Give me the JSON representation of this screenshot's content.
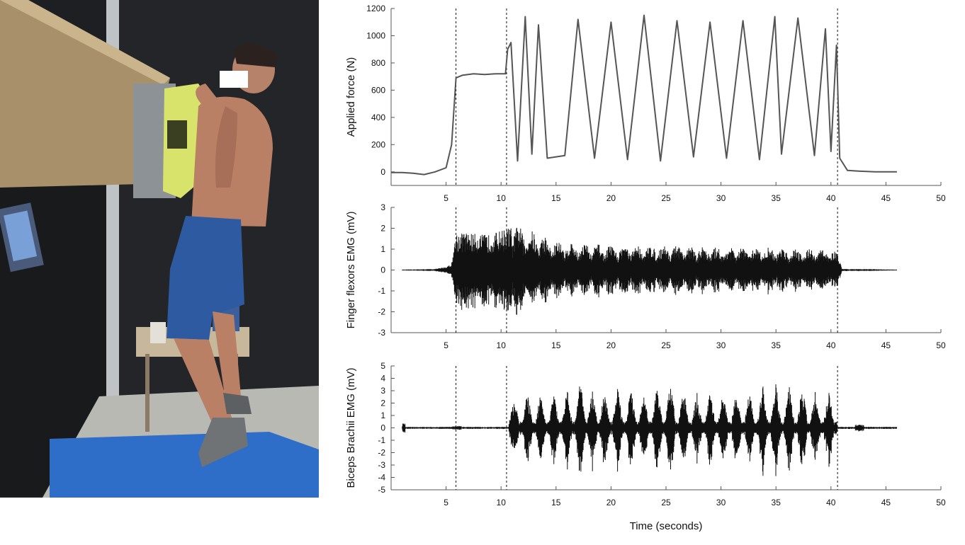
{
  "chart_data": [
    {
      "type": "line",
      "ylabel": "Applied force (N)",
      "xlim": [
        0,
        50
      ],
      "ylim": [
        -100,
        1200
      ],
      "yticks": [
        0,
        200,
        400,
        600,
        800,
        1000,
        1200
      ],
      "xticks": [
        5,
        10,
        15,
        20,
        25,
        30,
        35,
        40,
        45,
        50
      ],
      "grid": false,
      "events_x": [
        5.9,
        10.5,
        40.6
      ],
      "series": [
        {
          "color": "#555555",
          "x": [
            0,
            1,
            2,
            3,
            4,
            5,
            5.5,
            5.9,
            6.5,
            7.5,
            8.5,
            9.5,
            10.4,
            10.6,
            10.9,
            11.5,
            12.2,
            12.8,
            13.4,
            14.2,
            15.8,
            17.0,
            18.5,
            20.0,
            21.5,
            23.0,
            24.5,
            26.0,
            27.5,
            29.0,
            30.5,
            32.0,
            33.5,
            34.9,
            35.5,
            37.0,
            38.5,
            39.5,
            40.0,
            40.5,
            40.8,
            41.5,
            42.5,
            44,
            45,
            46
          ],
          "y": [
            -5,
            -5,
            -10,
            -20,
            0,
            30,
            200,
            690,
            710,
            720,
            715,
            720,
            720,
            900,
            950,
            80,
            1140,
            130,
            1080,
            100,
            120,
            1120,
            100,
            1100,
            90,
            1150,
            80,
            1110,
            110,
            1100,
            100,
            1110,
            90,
            1140,
            130,
            1130,
            120,
            1050,
            150,
            930,
            100,
            10,
            5,
            0,
            0,
            0
          ]
        }
      ]
    },
    {
      "type": "line",
      "ylabel": "Finger flexors EMG (mV)",
      "xlim": [
        0,
        50
      ],
      "ylim": [
        -3,
        3
      ],
      "yticks": [
        -3,
        -2,
        -1,
        0,
        1,
        2,
        3
      ],
      "xticks": [
        5,
        10,
        15,
        20,
        25,
        30,
        35,
        40,
        45,
        50
      ],
      "grid": false,
      "events_x": [
        5.9,
        10.5,
        40.6
      ],
      "envelope": {
        "x": [
          1,
          4,
          5,
          5.5,
          5.9,
          7,
          8,
          9,
          10.5,
          11.5,
          15,
          20,
          25,
          30,
          35,
          40,
          40.6,
          41,
          43,
          46
        ],
        "amplitude": [
          0.02,
          0.05,
          0.15,
          0.3,
          1.8,
          1.8,
          1.7,
          1.7,
          2.0,
          2.2,
          1.4,
          1.2,
          1.2,
          1.1,
          1.1,
          1.0,
          0.8,
          0.05,
          0.05,
          0.02
        ]
      }
    },
    {
      "type": "line",
      "ylabel": "Biceps Brachii EMG (mV)",
      "xlabel": "Time (seconds)",
      "xlim": [
        0,
        50
      ],
      "ylim": [
        -5,
        5
      ],
      "yticks": [
        -5,
        -4,
        -3,
        -2,
        -1,
        0,
        1,
        2,
        3,
        4,
        5
      ],
      "xticks": [
        5,
        10,
        15,
        20,
        25,
        30,
        35,
        40,
        45,
        50
      ],
      "grid": false,
      "events_x": [
        5.9,
        10.5,
        40.6
      ],
      "bursts": {
        "x": [
          11.2,
          12.4,
          13.6,
          14.8,
          16.0,
          17.2,
          18.3,
          19.4,
          20.6,
          21.8,
          23.0,
          24.2,
          25.4,
          26.6,
          27.8,
          29.0,
          30.2,
          31.4,
          32.6,
          33.8,
          35.0,
          36.2,
          37.4,
          38.6,
          39.8
        ],
        "amplitude": [
          2.8,
          3.0,
          3.0,
          2.8,
          3.2,
          4.0,
          3.3,
          3.0,
          3.2,
          3.2,
          3.0,
          3.5,
          3.8,
          3.2,
          3.0,
          3.2,
          3.0,
          3.0,
          3.0,
          3.5,
          3.6,
          3.5,
          3.5,
          3.2,
          3.0
        ]
      }
    }
  ]
}
